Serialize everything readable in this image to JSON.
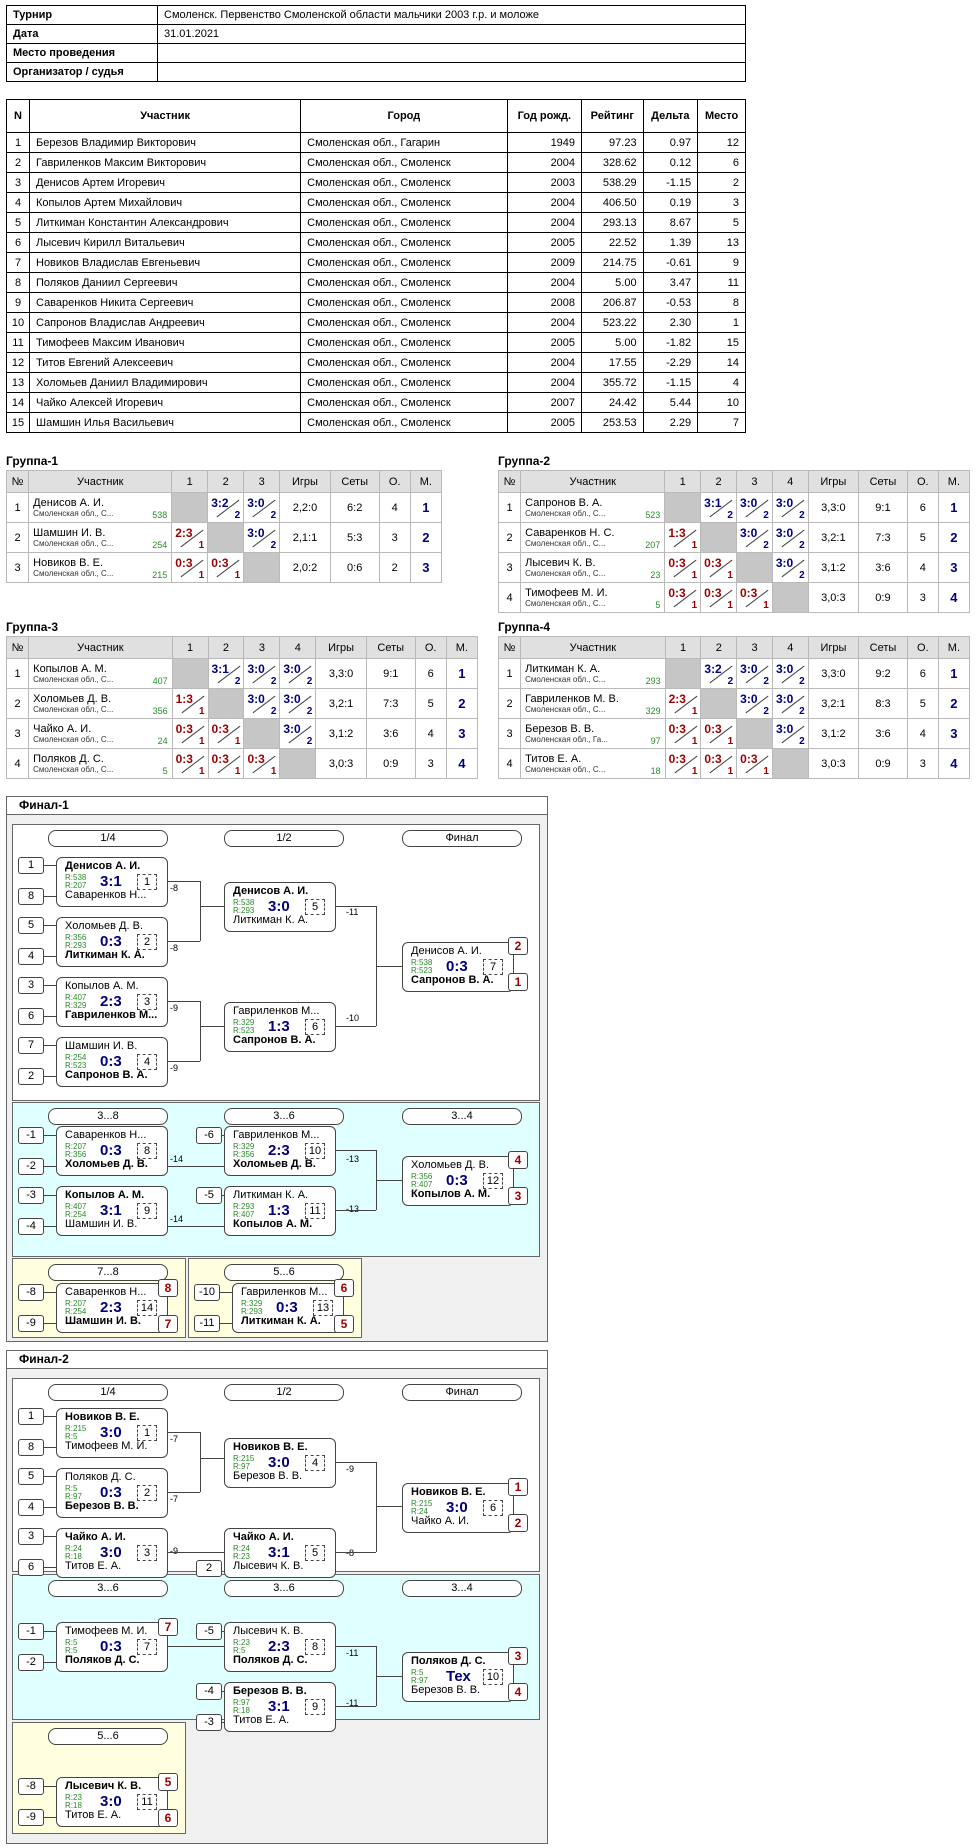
{
  "header": [
    {
      "k": "Турнир",
      "v": "Смоленск. Первенство Смоленской области мальчики 2003 г.р. и моложе"
    },
    {
      "k": "Дата",
      "v": "31.01.2021"
    },
    {
      "k": "Место проведения",
      "v": ""
    },
    {
      "k": "Организатор / судья",
      "v": ""
    }
  ],
  "participants": {
    "columns": [
      "N",
      "Участник",
      "Город",
      "Год рожд.",
      "Рейтинг",
      "Дельта",
      "Место"
    ],
    "rows": [
      [
        "1",
        "Березов Владимир Викторович",
        "Смоленская обл., Гагарин",
        "1949",
        "97.23",
        "0.97",
        "12"
      ],
      [
        "2",
        "Гавриленков Максим Викторович",
        "Смоленская обл., Смоленск",
        "2004",
        "328.62",
        "0.12",
        "6"
      ],
      [
        "3",
        "Денисов Артем Игоревич",
        "Смоленская обл., Смоленск",
        "2003",
        "538.29",
        "-1.15",
        "2"
      ],
      [
        "4",
        "Копылов Артем Михайлович",
        "Смоленская обл., Смоленск",
        "2004",
        "406.50",
        "0.19",
        "3"
      ],
      [
        "5",
        "Литкиман Константин  Александрович",
        "Смоленская обл., Смоленск",
        "2004",
        "293.13",
        "8.67",
        "5"
      ],
      [
        "6",
        "Лысевич Кирилл Витальевич",
        "Смоленская обл., Смоленск",
        "2005",
        "22.52",
        "1.39",
        "13"
      ],
      [
        "7",
        "Новиков Владислав Евгеньевич",
        "Смоленская обл., Смоленск",
        "2009",
        "214.75",
        "-0.61",
        "9"
      ],
      [
        "8",
        "Поляков Даниил Сергеевич",
        "Смоленская обл., Смоленск",
        "2004",
        "5.00",
        "3.47",
        "11"
      ],
      [
        "9",
        "Саваренков Никита Сергеевич",
        "Смоленская обл., Смоленск",
        "2008",
        "206.87",
        "-0.53",
        "8"
      ],
      [
        "10",
        "Сапронов Владислав Андреевич",
        "Смоленская обл., Смоленск",
        "2004",
        "523.22",
        "2.30",
        "1"
      ],
      [
        "11",
        "Тимофеев Максим Иванович",
        "Смоленская обл., Смоленск",
        "2005",
        "5.00",
        "-1.82",
        "15"
      ],
      [
        "12",
        "Титов Евгений Алексеевич",
        "Смоленская обл., Смоленск",
        "2004",
        "17.55",
        "-2.29",
        "14"
      ],
      [
        "13",
        "Холомьев Даниил Владимирович",
        "Смоленская обл., Смоленск",
        "2004",
        "355.72",
        "-1.15",
        "4"
      ],
      [
        "14",
        "Чайко Алексей Игоревич",
        "Смоленская обл., Смоленск",
        "2007",
        "24.42",
        "5.44",
        "10"
      ],
      [
        "15",
        "Шамшин Илья Васильевич",
        "Смоленская обл., Смоленск",
        "2005",
        "253.53",
        "2.29",
        "7"
      ]
    ]
  },
  "group_headers": [
    "№",
    "Участник",
    "Игры",
    "Сеты",
    "О.",
    "М."
  ],
  "groups": [
    {
      "title": "Группа-1",
      "n": 3,
      "rows": [
        {
          "no": "1",
          "name": "Денисов А. И.",
          "city": "Смоленская обл., С...",
          "rating": "538",
          "res": [
            null,
            [
              "3:2",
              "2",
              "w"
            ],
            [
              "3:0",
              "2",
              "w"
            ]
          ],
          "games": "2,2:0",
          "sets": "6:2",
          "pts": "4",
          "place": "1"
        },
        {
          "no": "2",
          "name": "Шамшин И. В.",
          "city": "Смоленская обл., С...",
          "rating": "254",
          "res": [
            [
              "2:3",
              "1",
              "l"
            ],
            null,
            [
              "3:0",
              "2",
              "w"
            ]
          ],
          "games": "2,1:1",
          "sets": "5:3",
          "pts": "3",
          "place": "2"
        },
        {
          "no": "3",
          "name": "Новиков В. Е.",
          "city": "Смоленская обл., С...",
          "rating": "215",
          "res": [
            [
              "0:3",
              "1",
              "l"
            ],
            [
              "0:3",
              "1",
              "l"
            ],
            null
          ],
          "games": "2,0:2",
          "sets": "0:6",
          "pts": "2",
          "place": "3"
        }
      ]
    },
    {
      "title": "Группа-2",
      "n": 4,
      "rows": [
        {
          "no": "1",
          "name": "Сапронов В. А.",
          "city": "Смоленская обл., С...",
          "rating": "523",
          "res": [
            null,
            [
              "3:1",
              "2",
              "w"
            ],
            [
              "3:0",
              "2",
              "w"
            ],
            [
              "3:0",
              "2",
              "w"
            ]
          ],
          "games": "3,3:0",
          "sets": "9:1",
          "pts": "6",
          "place": "1"
        },
        {
          "no": "2",
          "name": "Саваренков Н. С.",
          "city": "Смоленская обл., С...",
          "rating": "207",
          "res": [
            [
              "1:3",
              "1",
              "l"
            ],
            null,
            [
              "3:0",
              "2",
              "w"
            ],
            [
              "3:0",
              "2",
              "w"
            ]
          ],
          "games": "3,2:1",
          "sets": "7:3",
          "pts": "5",
          "place": "2"
        },
        {
          "no": "3",
          "name": "Лысевич К. В.",
          "city": "Смоленская обл., С...",
          "rating": "23",
          "res": [
            [
              "0:3",
              "1",
              "l"
            ],
            [
              "0:3",
              "1",
              "l"
            ],
            null,
            [
              "3:0",
              "2",
              "w"
            ]
          ],
          "games": "3,1:2",
          "sets": "3:6",
          "pts": "4",
          "place": "3"
        },
        {
          "no": "4",
          "name": "Тимофеев М. И.",
          "city": "Смоленская обл., С...",
          "rating": "5",
          "res": [
            [
              "0:3",
              "1",
              "l"
            ],
            [
              "0:3",
              "1",
              "l"
            ],
            [
              "0:3",
              "1",
              "l"
            ],
            null
          ],
          "games": "3,0:3",
          "sets": "0:9",
          "pts": "3",
          "place": "4"
        }
      ]
    },
    {
      "title": "Группа-3",
      "n": 4,
      "rows": [
        {
          "no": "1",
          "name": "Копылов А. М.",
          "city": "Смоленская обл., С...",
          "rating": "407",
          "res": [
            null,
            [
              "3:1",
              "2",
              "w"
            ],
            [
              "3:0",
              "2",
              "w"
            ],
            [
              "3:0",
              "2",
              "w"
            ]
          ],
          "games": "3,3:0",
          "sets": "9:1",
          "pts": "6",
          "place": "1"
        },
        {
          "no": "2",
          "name": "Холомьев Д. В.",
          "city": "Смоленская обл., С...",
          "rating": "356",
          "res": [
            [
              "1:3",
              "1",
              "l"
            ],
            null,
            [
              "3:0",
              "2",
              "w"
            ],
            [
              "3:0",
              "2",
              "w"
            ]
          ],
          "games": "3,2:1",
          "sets": "7:3",
          "pts": "5",
          "place": "2"
        },
        {
          "no": "3",
          "name": "Чайко А. И.",
          "city": "Смоленская обл., С...",
          "rating": "24",
          "res": [
            [
              "0:3",
              "1",
              "l"
            ],
            [
              "0:3",
              "1",
              "l"
            ],
            null,
            [
              "3:0",
              "2",
              "w"
            ]
          ],
          "games": "3,1:2",
          "sets": "3:6",
          "pts": "4",
          "place": "3"
        },
        {
          "no": "4",
          "name": "Поляков Д. С.",
          "city": "Смоленская обл., С...",
          "rating": "5",
          "res": [
            [
              "0:3",
              "1",
              "l"
            ],
            [
              "0:3",
              "1",
              "l"
            ],
            [
              "0:3",
              "1",
              "l"
            ],
            null
          ],
          "games": "3,0:3",
          "sets": "0:9",
          "pts": "3",
          "place": "4"
        }
      ]
    },
    {
      "title": "Группа-4",
      "n": 4,
      "rows": [
        {
          "no": "1",
          "name": "Литкиман К. А.",
          "city": "Смоленская обл., С...",
          "rating": "293",
          "res": [
            null,
            [
              "3:2",
              "2",
              "w"
            ],
            [
              "3:0",
              "2",
              "w"
            ],
            [
              "3:0",
              "2",
              "w"
            ]
          ],
          "games": "3,3:0",
          "sets": "9:2",
          "pts": "6",
          "place": "1"
        },
        {
          "no": "2",
          "name": "Гавриленков М. В.",
          "city": "Смоленская обл., С...",
          "rating": "329",
          "res": [
            [
              "2:3",
              "1",
              "l"
            ],
            null,
            [
              "3:0",
              "2",
              "w"
            ],
            [
              "3:0",
              "2",
              "w"
            ]
          ],
          "games": "3,2:1",
          "sets": "8:3",
          "pts": "5",
          "place": "2"
        },
        {
          "no": "3",
          "name": "Березов В. В.",
          "city": "Смоленская обл., Га...",
          "rating": "97",
          "res": [
            [
              "0:3",
              "1",
              "l"
            ],
            [
              "0:3",
              "1",
              "l"
            ],
            null,
            [
              "3:0",
              "2",
              "w"
            ]
          ],
          "games": "3,1:2",
          "sets": "3:6",
          "pts": "4",
          "place": "3"
        },
        {
          "no": "4",
          "name": "Титов Е. А.",
          "city": "Смоленская обл., С...",
          "rating": "18",
          "res": [
            [
              "0:3",
              "1",
              "l"
            ],
            [
              "0:3",
              "1",
              "l"
            ],
            [
              "0:3",
              "1",
              "l"
            ],
            null
          ],
          "games": "3,0:3",
          "sets": "0:9",
          "pts": "3",
          "place": "4"
        }
      ]
    }
  ],
  "final1": {
    "title": "Финал-1",
    "rounds": [
      "1/4",
      "1/2",
      "Финал",
      "3...8",
      "3...6",
      "3...4",
      "7...8",
      "5...6"
    ],
    "seeds": [
      "1",
      "8",
      "5",
      "4",
      "3",
      "6",
      "7",
      "2",
      "-1",
      "-2",
      "-3",
      "-4",
      "-6",
      "-5",
      "-8",
      "-9",
      "-10",
      "-11"
    ],
    "links": [
      "-8",
      "-8",
      "-9",
      "-9",
      "-11",
      "-10",
      "-14",
      "-14",
      "-13",
      "-13"
    ],
    "matches": [
      {
        "p1": "Денисов А. И.",
        "r1": "R:538",
        "r2": "R:207",
        "p2": "Саваренков Н...",
        "s": "3:1",
        "n": "1",
        "w": 1
      },
      {
        "p1": "Холомьев Д. В.",
        "r1": "R:356",
        "r2": "R:293",
        "p2": "Литкиман К. А.",
        "s": "0:3",
        "n": "2",
        "w": 2
      },
      {
        "p1": "Копылов А. М.",
        "r1": "R:407",
        "r2": "R:329",
        "p2": "Гавриленков М...",
        "s": "2:3",
        "n": "3",
        "w": 2
      },
      {
        "p1": "Шамшин И. В.",
        "r1": "R:254",
        "r2": "R:523",
        "p2": "Сапронов В. А.",
        "s": "0:3",
        "n": "4",
        "w": 2
      },
      {
        "p1": "Денисов А. И.",
        "r1": "R:538",
        "r2": "R:293",
        "p2": "Литкиман К. А.",
        "s": "3:0",
        "n": "5",
        "w": 1
      },
      {
        "p1": "Гавриленков М...",
        "r1": "R:329",
        "r2": "R:523",
        "p2": "Сапронов В. А.",
        "s": "1:3",
        "n": "6",
        "w": 2
      },
      {
        "p1": "Денисов А. И.",
        "r1": "R:538",
        "r2": "R:523",
        "p2": "Сапронов В. А.",
        "s": "0:3",
        "n": "7",
        "w": 2
      },
      {
        "p1": "Саваренков Н...",
        "r1": "R:207",
        "r2": "R:356",
        "p2": "Холомьев Д. В.",
        "s": "0:3",
        "n": "8",
        "w": 2
      },
      {
        "p1": "Копылов А. М.",
        "r1": "R:407",
        "r2": "R:254",
        "p2": "Шамшин И. В.",
        "s": "3:1",
        "n": "9",
        "w": 1
      },
      {
        "p1": "Гавриленков М...",
        "r1": "R:329",
        "r2": "R:356",
        "p2": "Холомьев Д. В.",
        "s": "2:3",
        "n": "10",
        "w": 2
      },
      {
        "p1": "Литкиман К. А.",
        "r1": "R:293",
        "r2": "R:407",
        "p2": "Копылов А. М.",
        "s": "1:3",
        "n": "11",
        "w": 2
      },
      {
        "p1": "Холомьев Д. В.",
        "r1": "R:356",
        "r2": "R:407",
        "p2": "Копылов А. М.",
        "s": "0:3",
        "n": "12",
        "w": 2
      },
      {
        "p1": "Саваренков Н...",
        "r1": "R:207",
        "r2": "R:254",
        "p2": "Шамшин И. В.",
        "s": "2:3",
        "n": "14",
        "w": 2
      },
      {
        "p1": "Гавриленков М...",
        "r1": "R:329",
        "r2": "R:293",
        "p2": "Литкиман К. А.",
        "s": "0:3",
        "n": "13",
        "w": 2
      }
    ],
    "places": [
      "2",
      "1",
      "4",
      "3",
      "8",
      "7",
      "6",
      "5"
    ]
  },
  "final2": {
    "title": "Финал-2",
    "rounds": [
      "1/4",
      "1/2",
      "Финал",
      "3...6",
      "3...6",
      "3...4",
      "5...6"
    ],
    "seeds": [
      "1",
      "8",
      "5",
      "4",
      "3",
      "6",
      "2",
      "-1",
      "-2",
      "-5",
      "-4",
      "-3",
      "-8",
      "-9"
    ],
    "links": [
      "-7",
      "-7",
      "-9",
      "-9",
      "-8",
      "-11",
      "-11"
    ],
    "matches": [
      {
        "p1": "Новиков В. Е.",
        "r1": "R:215",
        "r2": "R:5",
        "p2": "Тимофеев М. И.",
        "s": "3:0",
        "n": "1",
        "w": 1
      },
      {
        "p1": "Поляков Д. С.",
        "r1": "R:5",
        "r2": "R:97",
        "p2": "Березов В. В.",
        "s": "0:3",
        "n": "2",
        "w": 2
      },
      {
        "p1": "Чайко А. И.",
        "r1": "R:24",
        "r2": "R:18",
        "p2": "Титов Е. А.",
        "s": "3:0",
        "n": "3",
        "w": 1
      },
      {
        "p1": "Новиков В. Е.",
        "r1": "R:215",
        "r2": "R:97",
        "p2": "Березов В. В.",
        "s": "3:0",
        "n": "4",
        "w": 1
      },
      {
        "p1": "Чайко А. И.",
        "r1": "R:24",
        "r2": "R:23",
        "p2": "Лысевич К. В.",
        "s": "3:1",
        "n": "5",
        "w": 1
      },
      {
        "p1": "Новиков В. Е.",
        "r1": "R:215",
        "r2": "R:24",
        "p2": "Чайко А. И.",
        "s": "3:0",
        "n": "6",
        "w": 1
      },
      {
        "p1": "Тимофеев М. И.",
        "r1": "R:5",
        "r2": "R:5",
        "p2": "Поляков Д. С.",
        "s": "0:3",
        "n": "7",
        "w": 2
      },
      {
        "p1": "Лысевич К. В.",
        "r1": "R:23",
        "r2": "R:5",
        "p2": "Поляков Д. С.",
        "s": "2:3",
        "n": "8",
        "w": 2
      },
      {
        "p1": "Березов В. В.",
        "r1": "R:97",
        "r2": "R:18",
        "p2": "Титов Е. А.",
        "s": "3:1",
        "n": "9",
        "w": 1
      },
      {
        "p1": "Поляков Д. С.",
        "r1": "R:5",
        "r2": "R:97",
        "p2": "Березов В. В.",
        "s": "Тех",
        "n": "10",
        "w": 1
      },
      {
        "p1": "Лысевич К. В.",
        "r1": "R:23",
        "r2": "R:18",
        "p2": "Титов Е. А.",
        "s": "3:0",
        "n": "11",
        "w": 1
      }
    ],
    "places": [
      "1",
      "2",
      "7",
      "3",
      "4",
      "5",
      "6"
    ]
  }
}
